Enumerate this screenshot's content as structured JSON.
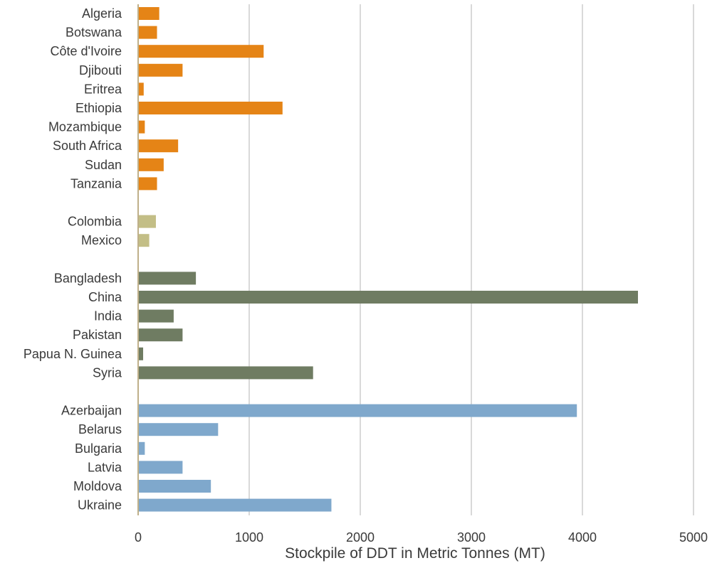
{
  "chart_data": {
    "type": "bar",
    "orientation": "horizontal",
    "title": "",
    "xlabel": "Stockpile of DDT in Metric Tonnes (MT)",
    "ylabel": "",
    "xlim": [
      0,
      5000
    ],
    "xticks": [
      "0",
      "1000",
      "2000",
      "3000",
      "4000",
      "5000"
    ],
    "grid": true,
    "legend": "none",
    "groups": [
      {
        "color": "#E58416",
        "categories": [
          "Algeria",
          "Botswana",
          "Côte d'Ivoire",
          "Djibouti",
          "Eritrea",
          "Ethiopia",
          "Mozambique",
          "South Africa",
          "Sudan",
          "Tanzania"
        ],
        "values": [
          190,
          170,
          1130,
          400,
          50,
          1300,
          60,
          360,
          230,
          170
        ]
      },
      {
        "color": "#C3BE86",
        "categories": [
          "Colombia",
          "Mexico"
        ],
        "values": [
          160,
          100
        ]
      },
      {
        "color": "#6F7C62",
        "categories": [
          "Bangladesh",
          "China",
          "India",
          "Pakistan",
          "Papua N. Guinea",
          "Syria"
        ],
        "values": [
          520,
          4500,
          320,
          400,
          45,
          1575
        ]
      },
      {
        "color": "#7FA8CC",
        "categories": [
          "Azerbaijan",
          "Belarus",
          "Bulgaria",
          "Latvia",
          "Moldova",
          "Ukraine"
        ],
        "values": [
          3950,
          720,
          60,
          400,
          655,
          1740
        ]
      }
    ]
  }
}
